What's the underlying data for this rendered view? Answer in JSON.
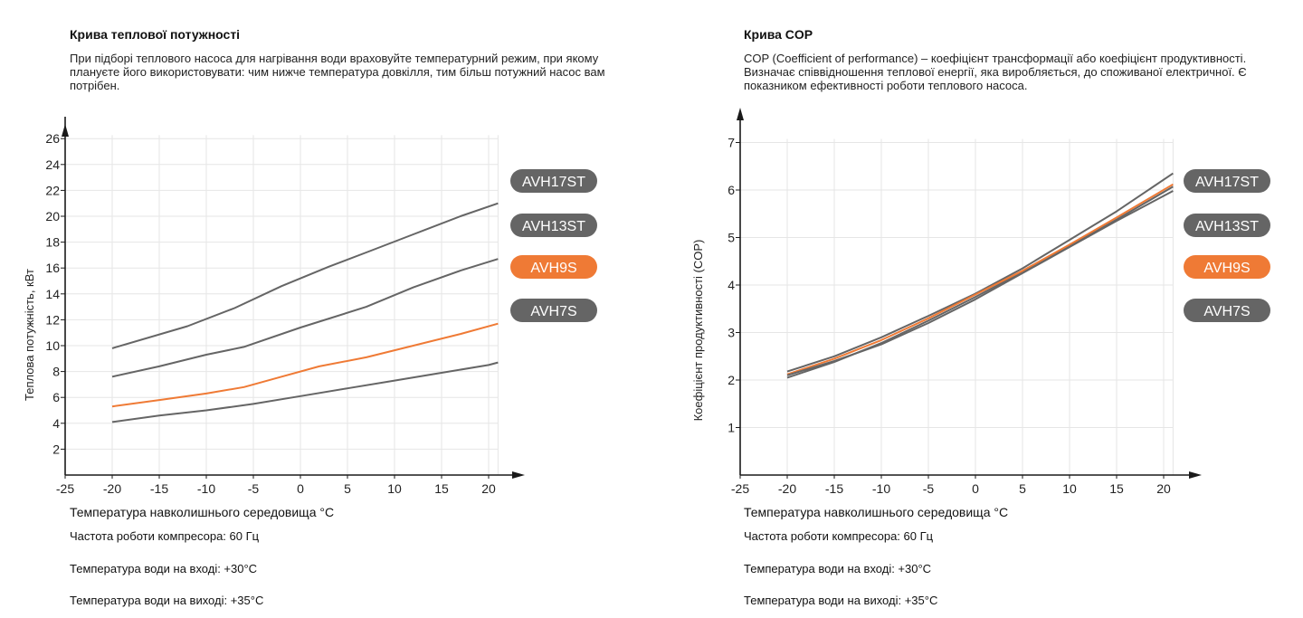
{
  "colors": {
    "grey": "#656565",
    "orange": "#ef7a35",
    "axis": "#1a1a1a",
    "grid": "#e6e6e6",
    "label_text": "#ffffff"
  },
  "chart_data": [
    {
      "type": "line",
      "title": "Крива теплової потужності",
      "subtitle": "При підборі теплового насоса для нагрівання води враховуйте температурний режим, при якому плануєте його використовувати: чим нижче температура довкілля, тим більш потужний насос вам потрібен.",
      "xlabel": "Температура навколишнього середовища °C",
      "ylabel": "Теплова потужність, кВт",
      "xlim": [
        -25,
        21
      ],
      "ylim": [
        0,
        26
      ],
      "grid": true,
      "x_ticks": [
        "-25",
        "-20",
        "-15",
        "-10",
        "-5",
        "0",
        "5",
        "10",
        "15",
        "20"
      ],
      "y_ticks": [
        "2",
        "4",
        "6",
        "8",
        "10",
        "12",
        "14",
        "16",
        "18",
        "20",
        "22",
        "24",
        "26"
      ],
      "legend_position": "right",
      "series": [
        {
          "name": "AVH17ST",
          "color": "#656565",
          "x": [
            -20,
            -12,
            -7,
            -2,
            3,
            7,
            12,
            17,
            21
          ],
          "y": [
            9.8,
            11.5,
            12.9,
            14.6,
            16.1,
            17.2,
            18.6,
            20.0,
            21.0
          ]
        },
        {
          "name": "AVH13ST",
          "color": "#656565",
          "x": [
            -20,
            -15,
            -10,
            -6,
            0,
            7,
            12,
            17,
            21
          ],
          "y": [
            7.6,
            8.4,
            9.3,
            9.9,
            11.4,
            13.0,
            14.5,
            15.8,
            16.7
          ]
        },
        {
          "name": "AVH9S",
          "color": "#ef7a35",
          "x": [
            -20,
            -15,
            -10,
            -6,
            -2,
            2,
            7,
            12,
            17,
            21
          ],
          "y": [
            5.3,
            5.8,
            6.3,
            6.8,
            7.6,
            8.4,
            9.1,
            10.0,
            10.9,
            11.7
          ]
        },
        {
          "name": "AVH7S",
          "color": "#656565",
          "x": [
            -20,
            -15,
            -10,
            -5,
            0,
            5,
            10,
            15,
            20,
            21
          ],
          "y": [
            4.1,
            4.6,
            5.0,
            5.5,
            6.1,
            6.7,
            7.3,
            7.9,
            8.5,
            8.7
          ]
        }
      ],
      "notes": [
        "Частота роботи компресора: 60 Гц",
        "Температура води на вході: +30°C",
        "Температура води на виході: +35°C"
      ]
    },
    {
      "type": "line",
      "title": "Крива COP",
      "subtitle": "COP (Coefficient of performance) – коефіцієнт трансформації або коефіцієнт продуктивності. Визначає співвідношення теплової енергії, яка виробляється, до споживаної електричної. Є показником ефективності роботи теплового насоса.",
      "xlabel": "Температура навколишнього середовища °C",
      "ylabel": "Коефіцієнт продуктивності (COP)",
      "xlim": [
        -25,
        21
      ],
      "ylim": [
        0,
        7
      ],
      "grid": true,
      "x_ticks": [
        "-25",
        "-20",
        "-15",
        "-10",
        "-5",
        "0",
        "5",
        "10",
        "15",
        "20"
      ],
      "y_ticks": [
        "1",
        "2",
        "3",
        "4",
        "5",
        "6",
        "7"
      ],
      "legend_position": "right",
      "series": [
        {
          "name": "AVH17ST",
          "color": "#656565",
          "x": [
            -20,
            -15,
            -10,
            -5,
            0,
            5,
            10,
            15,
            21
          ],
          "y": [
            2.18,
            2.5,
            2.9,
            3.35,
            3.82,
            4.35,
            4.95,
            5.55,
            6.35
          ]
        },
        {
          "name": "AVH13ST",
          "color": "#656565",
          "x": [
            -20,
            -15,
            -10,
            -5,
            0,
            5,
            10,
            15,
            21
          ],
          "y": [
            2.05,
            2.38,
            2.78,
            3.25,
            3.75,
            4.27,
            4.82,
            5.38,
            6.07
          ]
        },
        {
          "name": "AVH9S",
          "color": "#ef7a35",
          "x": [
            -20,
            -15,
            -10,
            -5,
            0,
            5,
            10,
            15,
            21
          ],
          "y": [
            2.12,
            2.45,
            2.84,
            3.3,
            3.8,
            4.3,
            4.85,
            5.42,
            6.12
          ]
        },
        {
          "name": "AVH7S",
          "color": "#656565",
          "x": [
            -20,
            -15,
            -10,
            -5,
            0,
            5,
            10,
            15,
            21
          ],
          "y": [
            2.1,
            2.4,
            2.75,
            3.2,
            3.7,
            4.25,
            4.8,
            5.35,
            5.98
          ]
        }
      ],
      "notes": [
        "Частота роботи компресора: 60 Гц",
        "Температура води на вході: +30°C",
        "Температура води на виході: +35°C"
      ]
    }
  ]
}
